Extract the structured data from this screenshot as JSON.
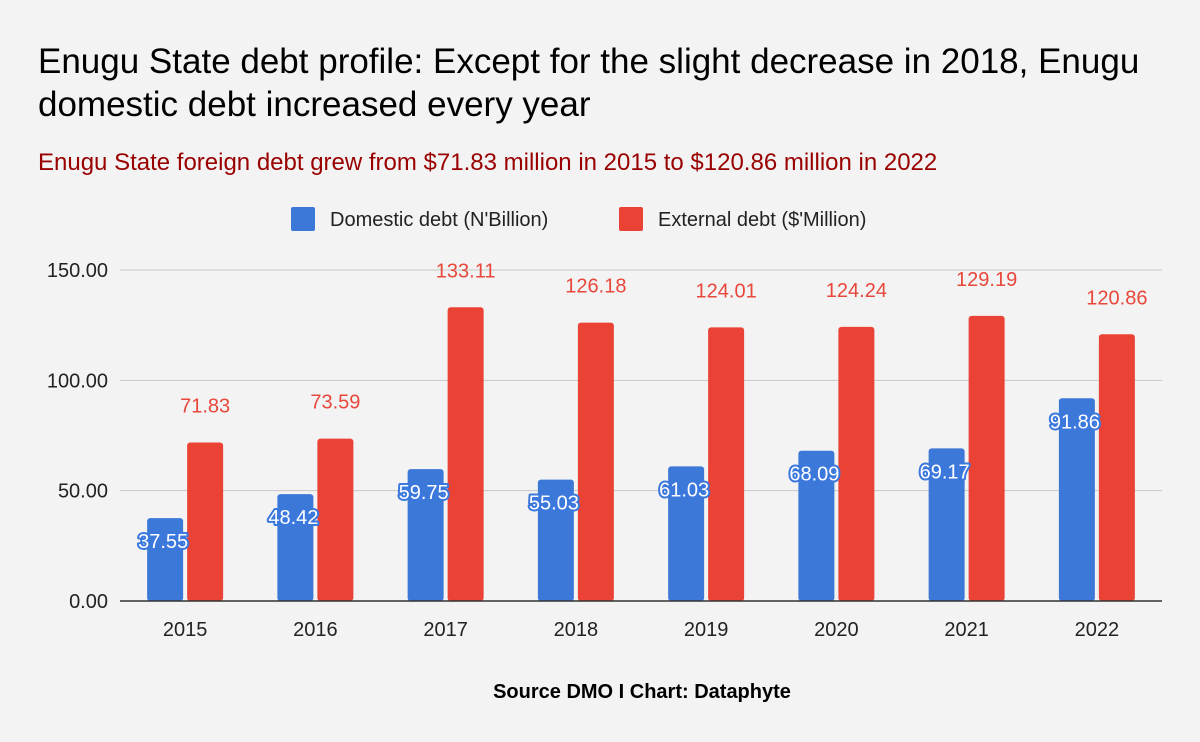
{
  "chart_data": {
    "type": "bar",
    "title": "Enugu State debt profile: Except for the slight decrease in 2018, Enugu domestic debt increased every year",
    "subtitle": "Enugu State foreign debt grew from $71.83 million in 2015 to $120.86 million in 2022",
    "categories": [
      "2015",
      "2016",
      "2017",
      "2018",
      "2019",
      "2020",
      "2021",
      "2022"
    ],
    "series": [
      {
        "name": "Domestic debt (N'Billion)",
        "color": "#3c78d8",
        "values": [
          37.55,
          48.42,
          59.75,
          55.03,
          61.03,
          68.09,
          69.17,
          91.86
        ],
        "labels": [
          "37.55",
          "48.42",
          "59.75",
          "55.03",
          "61.03",
          "68.09",
          "69.17",
          "91.86"
        ]
      },
      {
        "name": "External debt ($'Million)",
        "color": "#ea4335",
        "values": [
          71.83,
          73.59,
          133.11,
          126.18,
          124.01,
          124.24,
          129.19,
          120.86
        ],
        "labels": [
          "71.83",
          "73.59",
          "133.11",
          "126.18",
          "124.01",
          "124.24",
          "129.19",
          "120.86"
        ]
      }
    ],
    "yticks": [
      "0.00",
      "50.00",
      "100.00",
      "150.00"
    ],
    "ylim": [
      0,
      150
    ],
    "legend_position": "top-center",
    "grid": true,
    "source": "Source DMO I Chart: Dataphyte"
  }
}
